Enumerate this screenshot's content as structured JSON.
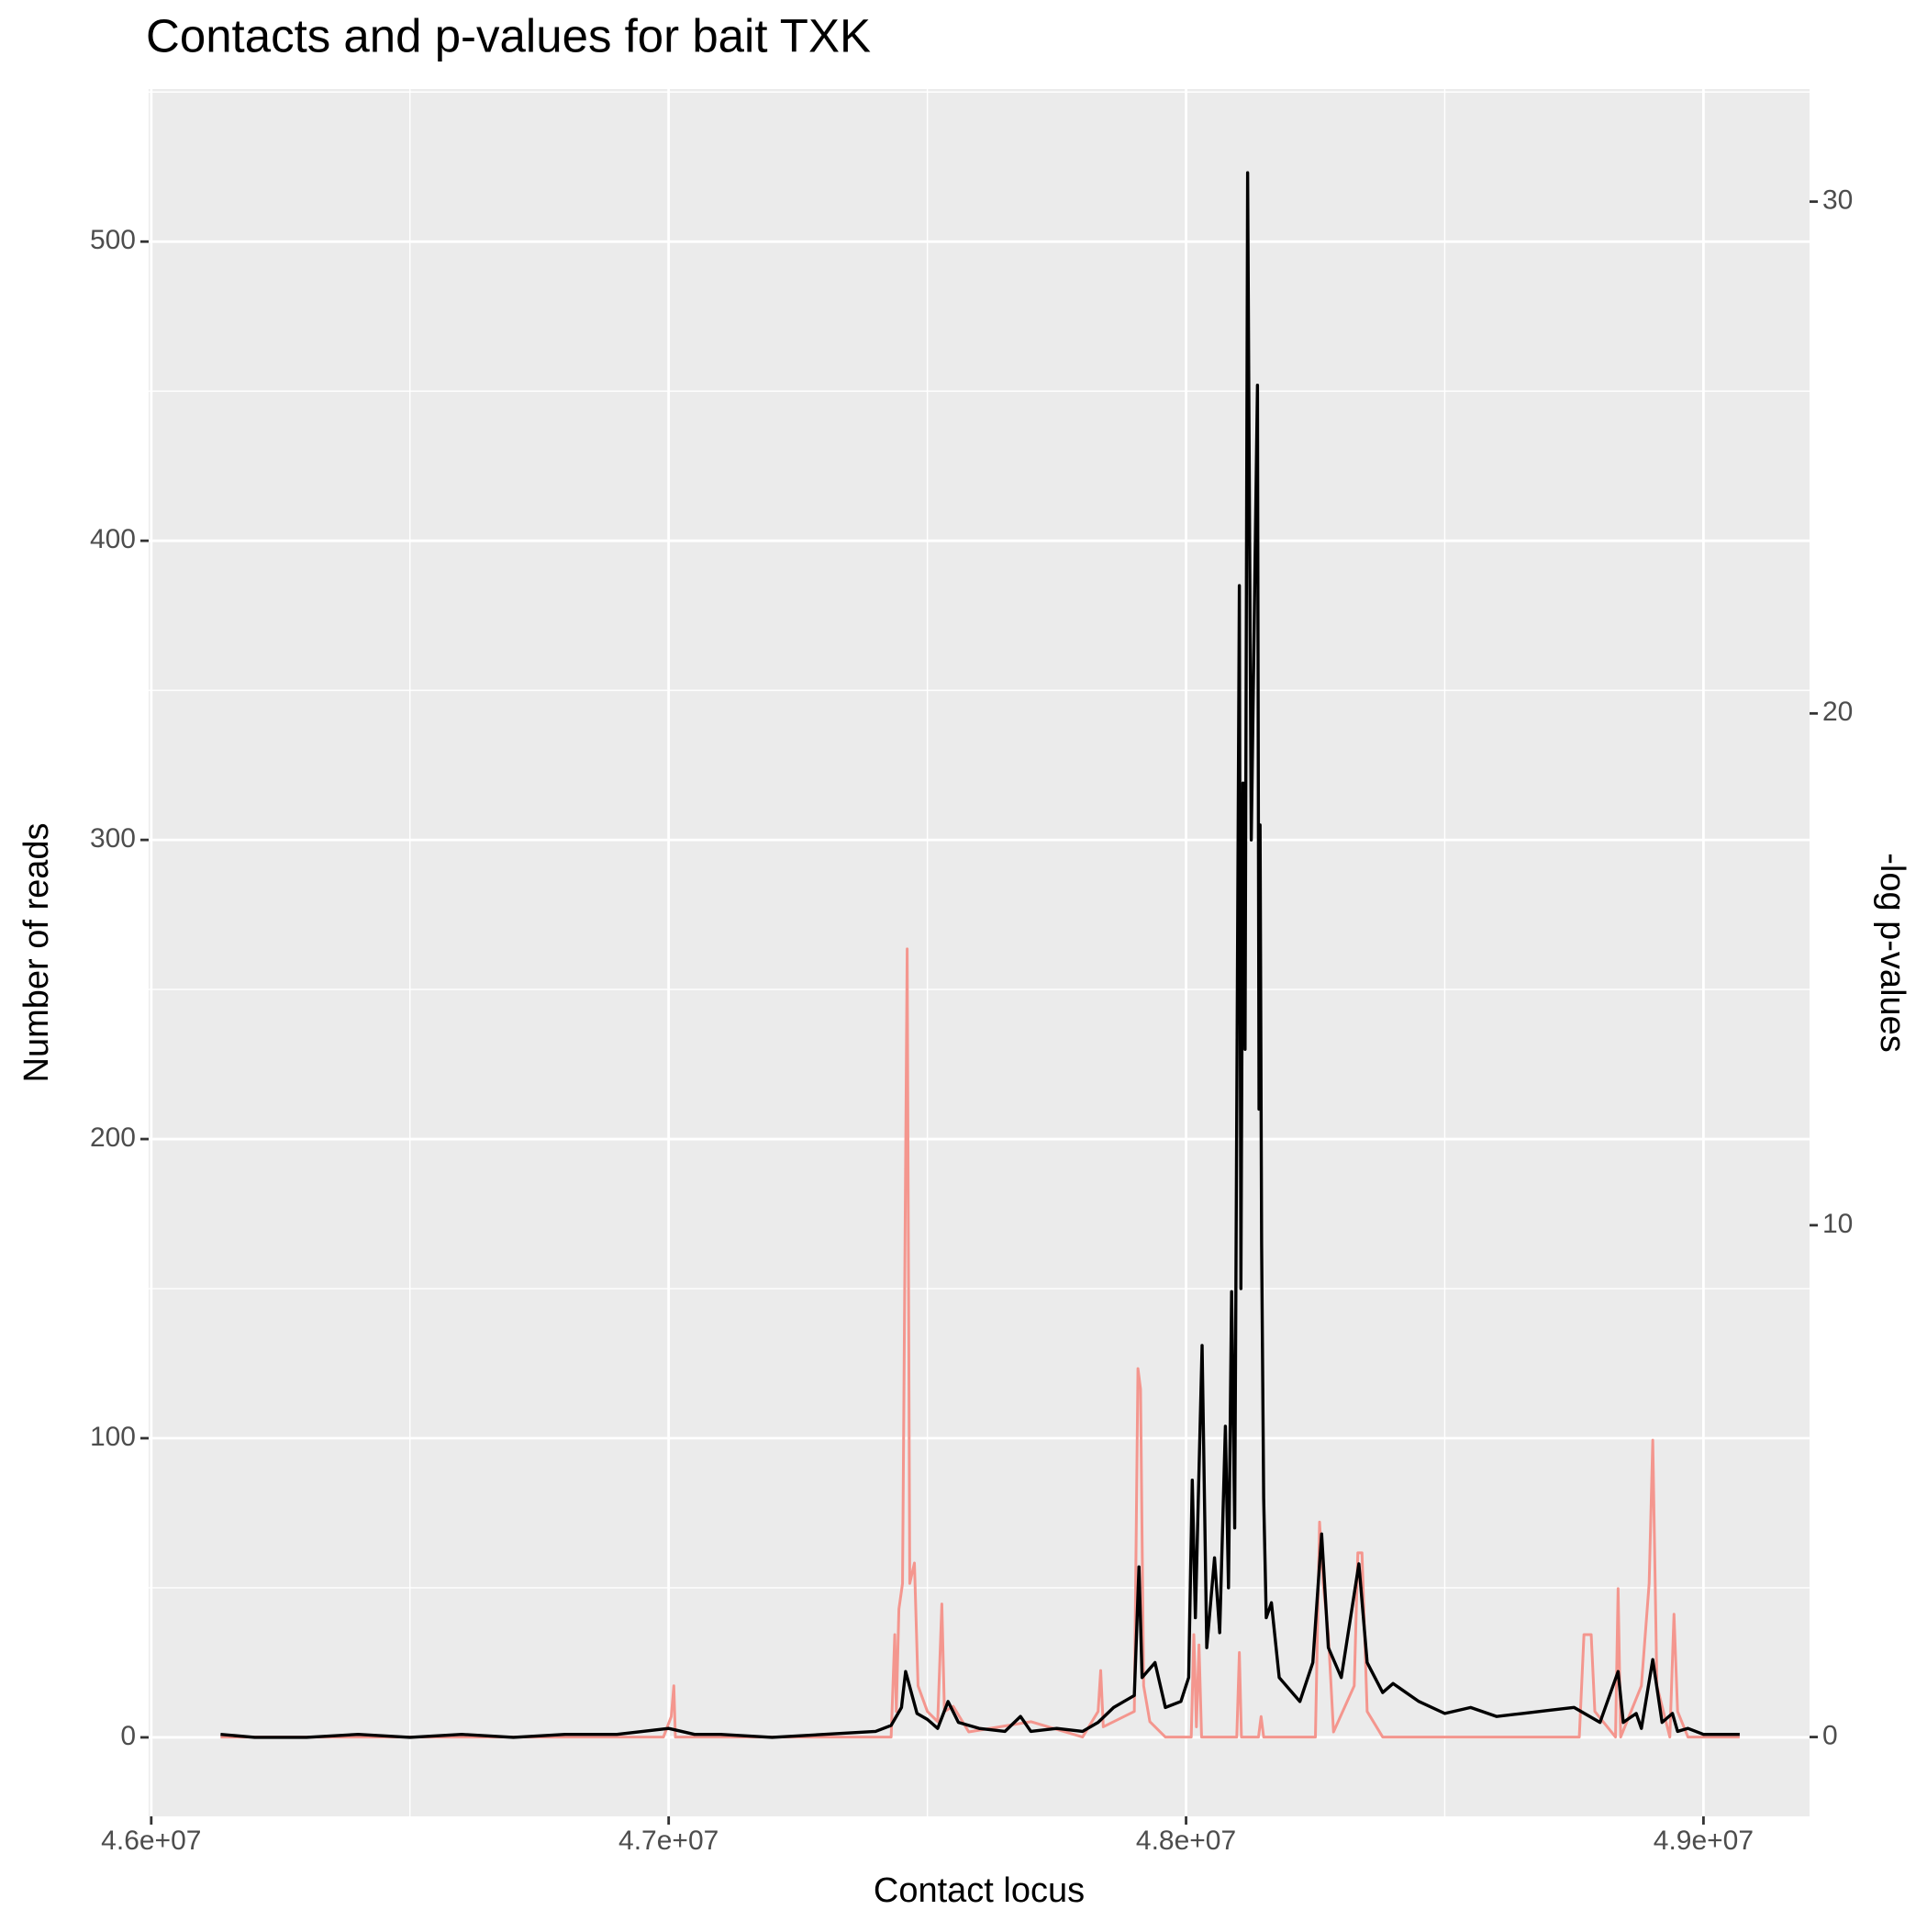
{
  "chart_data": {
    "type": "line",
    "title": "Contacts and p-values for bait TXK",
    "xlabel": "Contact locus",
    "ylabel": "Number of reads",
    "y2label": "-log p-values",
    "xlim": [
      45995000,
      49205000
    ],
    "xticks": [
      {
        "value": 46000000,
        "label": "4.6e+07"
      },
      {
        "value": 47000000,
        "label": "4.7e+07"
      },
      {
        "value": 48000000,
        "label": "4.8e+07"
      },
      {
        "value": 49000000,
        "label": "4.9e+07"
      }
    ],
    "xminor": [
      46500000,
      47500000,
      48500000
    ],
    "ylim": [
      -26.4,
      551
    ],
    "yticks": [
      0,
      100,
      200,
      300,
      400,
      500
    ],
    "yminor": [
      50,
      150,
      250,
      350,
      450,
      550
    ],
    "y2lim": [
      -1.55,
      32.2
    ],
    "y2ticks": [
      0,
      10,
      20,
      30
    ],
    "grid": true,
    "series": [
      {
        "color": "#000000",
        "x": [
          46134000,
          46200000,
          46300000,
          46400000,
          46500000,
          46600000,
          46700000,
          46800000,
          46900000,
          46950000,
          47000000,
          47050000,
          47100000,
          47200000,
          47300000,
          47400000,
          47430000,
          47450000,
          47458000,
          47480000,
          47500000,
          47520000,
          47540000,
          47560000,
          47600000,
          47650000,
          47680000,
          47700000,
          47750000,
          47800000,
          47830000,
          47860000,
          47880000,
          47900000,
          47909000,
          47915000,
          47940000,
          47960000,
          47990000,
          48005000,
          48012000,
          48018000,
          48031000,
          48040000,
          48055000,
          48065000,
          48076000,
          48082000,
          48088000,
          48094000,
          48103000,
          48106000,
          48110000,
          48114000,
          48119000,
          48126000,
          48138000,
          48141000,
          48143000,
          48146000,
          48150000,
          48155000,
          48165000,
          48180000,
          48220000,
          48245000,
          48262000,
          48275000,
          48300000,
          48334000,
          48350000,
          48380000,
          48400000,
          48450000,
          48500000,
          48550000,
          48600000,
          48650000,
          48700000,
          48750000,
          48800000,
          48835000,
          48845000,
          48870000,
          48880000,
          48902000,
          48920000,
          48940000,
          48950000,
          48970000,
          49000000,
          49050000,
          49070000
        ],
        "values": [
          1,
          0,
          0,
          1,
          0,
          1,
          0,
          1,
          1,
          2,
          3,
          1,
          1,
          0,
          1,
          2,
          4,
          10,
          22,
          8,
          6,
          3,
          12,
          5,
          3,
          2,
          7,
          2,
          3,
          2,
          5,
          10,
          12,
          14,
          57,
          20,
          25,
          10,
          12,
          20,
          86,
          40,
          131,
          30,
          60,
          35,
          104,
          50,
          149,
          70,
          385,
          150,
          319,
          230,
          523,
          300,
          452,
          210,
          305,
          165,
          80,
          40,
          45,
          20,
          12,
          25,
          68,
          30,
          20,
          58,
          25,
          15,
          18,
          12,
          8,
          10,
          7,
          8,
          9,
          10,
          5,
          22,
          5,
          8,
          3,
          26,
          5,
          8,
          2,
          3,
          1,
          1,
          1
        ]
      },
      {
        "color": "#f4968e",
        "axis": "y2",
        "x": [
          46134000,
          46500000,
          46990000,
          47005000,
          47010000,
          47013000,
          47430000,
          47437000,
          47440000,
          47445000,
          47452000,
          47461000,
          47466000,
          47475000,
          47482000,
          47500000,
          47520000,
          47528000,
          47533000,
          47550000,
          47580000,
          47700000,
          47800000,
          47830000,
          47835000,
          47840000,
          47900000,
          47907000,
          47912000,
          47918000,
          47930000,
          47960000,
          48010000,
          48015000,
          48020000,
          48025000,
          48030000,
          48098000,
          48103000,
          48107000,
          48140000,
          48145000,
          48150000,
          48250000,
          48258000,
          48265000,
          48275000,
          48285000,
          48325000,
          48332000,
          48340000,
          48350000,
          48380000,
          48760000,
          48769000,
          48783000,
          48790000,
          48830000,
          48835000,
          48840000,
          48880000,
          48895000,
          48902000,
          48910000,
          48935000,
          48943000,
          48950000,
          48970000,
          49070000
        ],
        "values": [
          0,
          0,
          0,
          0.4,
          1.0,
          0,
          0,
          2.0,
          0.5,
          2.5,
          3.0,
          15.4,
          3.0,
          3.4,
          1.0,
          0.5,
          0.3,
          2.6,
          0.5,
          0.6,
          0.1,
          0.3,
          0,
          0.5,
          1.3,
          0.2,
          0.5,
          7.2,
          6.8,
          1.0,
          0.3,
          0,
          0,
          2.0,
          0.2,
          1.8,
          0,
          0,
          1.65,
          0,
          0,
          0.4,
          0,
          0,
          4.2,
          3.0,
          2.0,
          0.1,
          1.0,
          3.6,
          3.6,
          0.5,
          0,
          0,
          2.0,
          2.0,
          0.5,
          0,
          2.9,
          0,
          1.0,
          3.0,
          5.8,
          1.0,
          0,
          2.4,
          0.5,
          0,
          0
        ]
      }
    ]
  }
}
